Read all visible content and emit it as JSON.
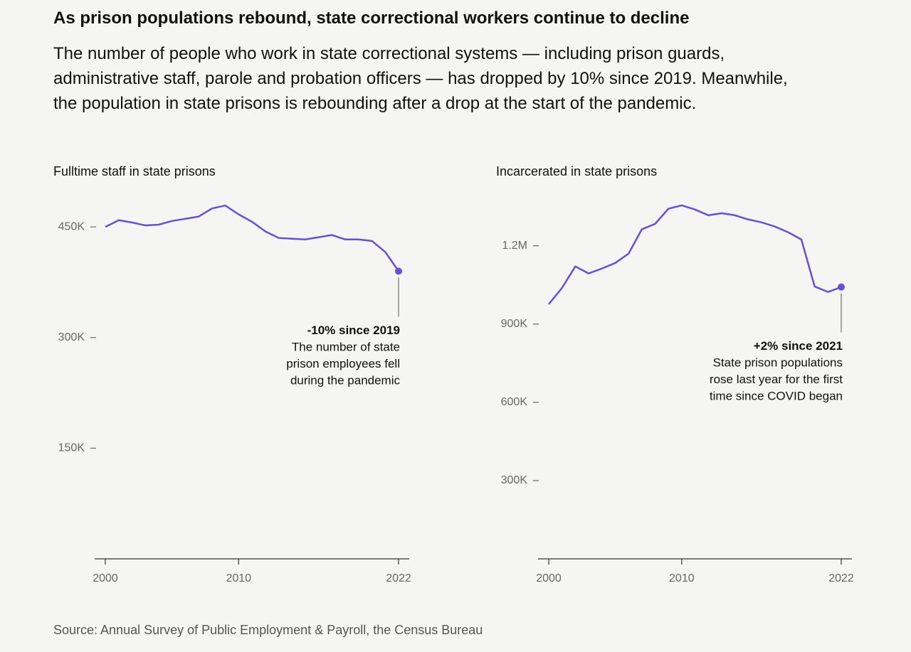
{
  "title": "As prison populations rebound, state correctional workers continue to decline",
  "subtitle": "The number of people who work in state correctional systems — including prison guards, administrative staff, parole and probation officers — has dropped by 10% since 2019. Meanwhile, the population in state prisons is rebounding after a drop at the start of the pandemic.",
  "source": "Source: Annual Survey of Public Employment & Payroll, the Census Bureau",
  "chart_data": [
    {
      "type": "line",
      "title": "Fulltime staff in state prisons",
      "x": [
        2000,
        2001,
        2002,
        2003,
        2004,
        2005,
        2006,
        2007,
        2008,
        2009,
        2010,
        2011,
        2012,
        2013,
        2014,
        2015,
        2016,
        2017,
        2018,
        2019,
        2020,
        2021,
        2022
      ],
      "values": [
        450000,
        459000,
        456000,
        452000,
        453000,
        458000,
        461000,
        464000,
        475000,
        479000,
        467000,
        457000,
        444000,
        435000,
        434000,
        433000,
        436000,
        439000,
        433000,
        433000,
        431000,
        416000,
        390000
      ],
      "color": "#6a4fd6",
      "xlim": [
        2000,
        2022
      ],
      "xticks": [
        2000,
        2010,
        2022
      ],
      "ylim": [
        0,
        480000
      ],
      "yticks": [
        {
          "value": 150000,
          "label": "150K"
        },
        {
          "value": 300000,
          "label": "300K"
        },
        {
          "value": 450000,
          "label": "450K"
        }
      ],
      "annotation": {
        "heading": "-10% since 2019",
        "lines": [
          "The number of state",
          "prison employees fell",
          "during the pandemic"
        ]
      }
    },
    {
      "type": "line",
      "title": "Incarcerated in state prisons",
      "x": [
        2000,
        2001,
        2002,
        2003,
        2004,
        2005,
        2006,
        2007,
        2008,
        2009,
        2010,
        2011,
        2012,
        2013,
        2014,
        2015,
        2016,
        2017,
        2018,
        2019,
        2020,
        2021,
        2022
      ],
      "values": [
        976000,
        1039000,
        1121000,
        1094000,
        1113000,
        1134000,
        1170000,
        1263000,
        1284000,
        1342000,
        1355000,
        1339000,
        1317000,
        1325000,
        1317000,
        1301000,
        1290000,
        1274000,
        1252000,
        1224000,
        1044000,
        1023000,
        1042000
      ],
      "color": "#6a4fd6",
      "xlim": [
        2000,
        2022
      ],
      "xticks": [
        2000,
        2010,
        2022
      ],
      "ylim": [
        0,
        1360000
      ],
      "yticks": [
        {
          "value": 300000,
          "label": "300K"
        },
        {
          "value": 600000,
          "label": "600K"
        },
        {
          "value": 900000,
          "label": "900K"
        },
        {
          "value": 1200000,
          "label": "1.2M"
        }
      ],
      "annotation": {
        "heading": "+2% since 2021",
        "lines": [
          "State prison populations",
          "rose last year for the first",
          "time since COVID began"
        ]
      }
    }
  ]
}
